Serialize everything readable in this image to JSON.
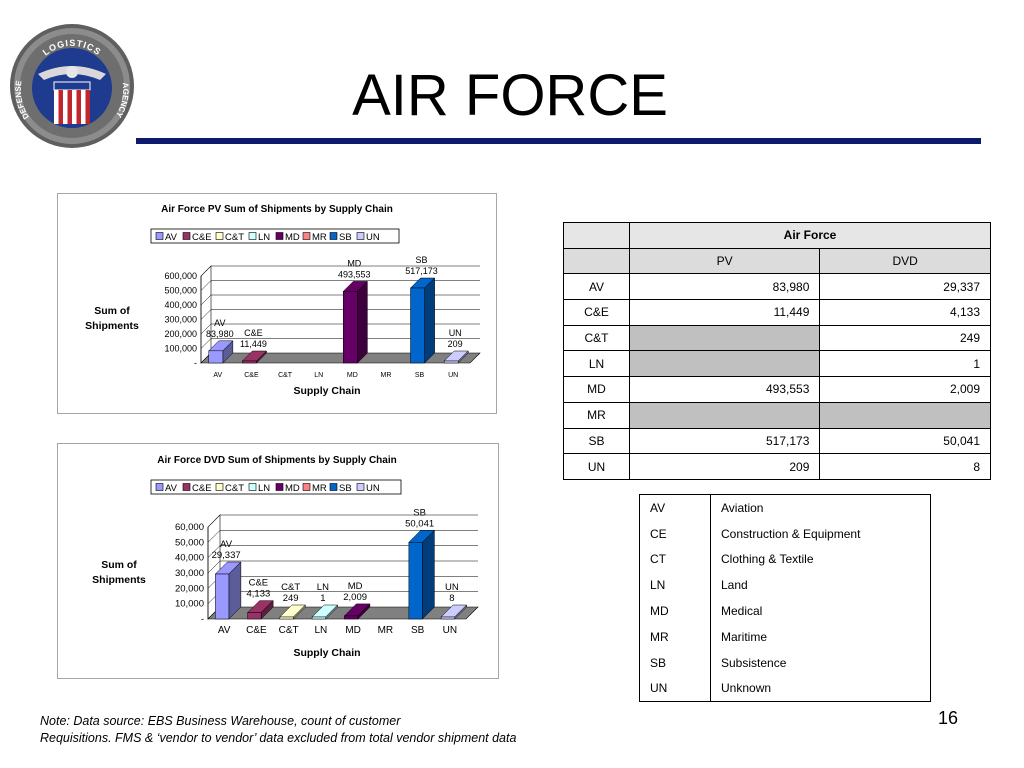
{
  "slide": {
    "title": "AIR FORCE",
    "page_number": "16",
    "note_line1": "Note: Data source: EBS Business Warehouse, count of customer",
    "note_line2": "Requisitions. FMS & ‘vendor to vendor’ data excluded from total vendor shipment data"
  },
  "logo": {
    "top_text": "LOGISTICS",
    "left_text": "DEFENSE",
    "right_text": "AGENCY",
    "colors": {
      "ring": "#7a7a7a",
      "field": "#1f3b8f",
      "stripe_red": "#c0262d",
      "stripe_white": "#ffffff"
    }
  },
  "chart_data": [
    {
      "type": "bar",
      "title": "Air Force PV Sum of Shipments by Supply Chain",
      "xlabel": "Supply Chain",
      "ylabel": "Sum of Shipments",
      "categories": [
        "AV",
        "C&E",
        "C&T",
        "LN",
        "MD",
        "MR",
        "SB",
        "UN"
      ],
      "values": [
        83980,
        11449,
        null,
        null,
        493553,
        null,
        517173,
        209
      ],
      "value_labels": [
        "83,980",
        "11,449",
        "",
        "",
        "493,553",
        "",
        "517,173",
        "209"
      ],
      "colors": [
        "#9999ff",
        "#993366",
        "#ffffcc",
        "#ccffff",
        "#660066",
        "#ff8080",
        "#0066cc",
        "#ccccff"
      ],
      "yticks": [
        0,
        100000,
        200000,
        300000,
        400000,
        500000,
        600000
      ],
      "ytick_labels": [
        "-",
        "100,000",
        "200,000",
        "300,000",
        "400,000",
        "500,000",
        "600,000"
      ],
      "ylim": [
        0,
        600000
      ],
      "legend": "top",
      "grid": true,
      "three_d": true
    },
    {
      "type": "bar",
      "title": "Air Force DVD Sum of Shipments by Supply Chain",
      "xlabel": "Supply Chain",
      "ylabel": "Sum of Shipments",
      "categories": [
        "AV",
        "C&E",
        "C&T",
        "LN",
        "MD",
        "MR",
        "SB",
        "UN"
      ],
      "values": [
        29337,
        4133,
        249,
        1,
        2009,
        null,
        50041,
        8
      ],
      "value_labels": [
        "29,337",
        "4,133",
        "249",
        "1",
        "2,009",
        "",
        "50,041",
        "8"
      ],
      "colors": [
        "#9999ff",
        "#993366",
        "#ffffcc",
        "#ccffff",
        "#660066",
        "#ff8080",
        "#0066cc",
        "#ccccff"
      ],
      "yticks": [
        0,
        10000,
        20000,
        30000,
        40000,
        50000,
        60000
      ],
      "ytick_labels": [
        "-",
        "10,000",
        "20,000",
        "30,000",
        "40,000",
        "50,000",
        "60,000"
      ],
      "ylim": [
        0,
        60000
      ],
      "legend": "top",
      "grid": true,
      "three_d": true
    }
  ],
  "air_force_table": {
    "title": "Air Force",
    "col_pv": "PV",
    "col_dvd": "DVD",
    "rows": [
      {
        "label": "AV",
        "pv": "83,980",
        "dvd": "29,337"
      },
      {
        "label": "C&E",
        "pv": "11,449",
        "dvd": "4,133"
      },
      {
        "label": "C&T",
        "pv": "",
        "dvd": "249"
      },
      {
        "label": "LN",
        "pv": "",
        "dvd": "1"
      },
      {
        "label": "MD",
        "pv": "493,553",
        "dvd": "2,009"
      },
      {
        "label": "MR",
        "pv": "",
        "dvd": ""
      },
      {
        "label": "SB",
        "pv": "517,173",
        "dvd": "50,041"
      },
      {
        "label": "UN",
        "pv": "209",
        "dvd": "8"
      }
    ]
  },
  "legend_table": {
    "rows": [
      {
        "code": "AV",
        "name": "Aviation"
      },
      {
        "code": "CE",
        "name": "Construction & Equipment"
      },
      {
        "code": "CT",
        "name": "Clothing & Textile"
      },
      {
        "code": "LN",
        "name": "Land"
      },
      {
        "code": "MD",
        "name": "Medical"
      },
      {
        "code": "MR",
        "name": "Maritime"
      },
      {
        "code": "SB",
        "name": "Subsistence"
      },
      {
        "code": "UN",
        "name": "Unknown"
      }
    ]
  }
}
